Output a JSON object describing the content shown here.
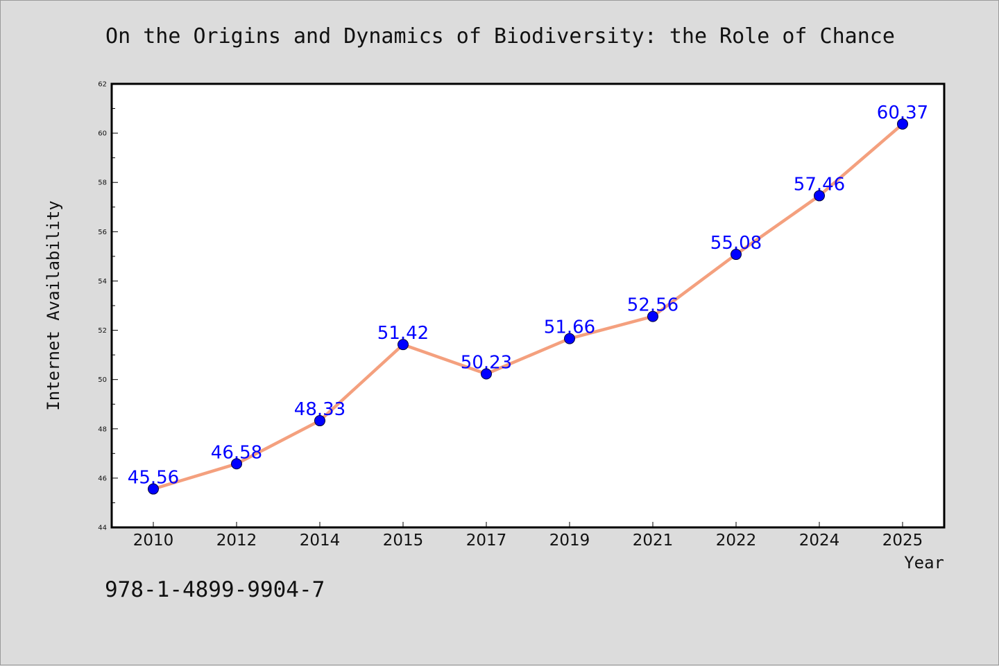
{
  "title": "On the Origins and Dynamics of Biodiversity: the Role of Chance",
  "isbn": "978-1-4899-9904-7",
  "colors": {
    "background": "#dcdcdc",
    "plot_background": "#ffffff",
    "line": "#f4a07e",
    "marker": "#0000ff",
    "data_label": "#0000ff"
  },
  "chart_data": {
    "type": "line",
    "title": "On the Origins and Dynamics of Biodiversity: the Role of Chance",
    "xlabel": "Year",
    "ylabel": "Internet Availability",
    "categories": [
      "2010",
      "2012",
      "2014",
      "2015",
      "2017",
      "2019",
      "2021",
      "2022",
      "2024",
      "2025"
    ],
    "series": [
      {
        "values": [
          45.56,
          46.58,
          48.33,
          51.42,
          50.23,
          51.66,
          52.56,
          55.08,
          57.46,
          60.37
        ],
        "labels": [
          "45.56",
          "46.58",
          "48.33",
          "51.42",
          "50.23",
          "51.66",
          "52.56",
          "55.08",
          "57.46",
          "60.37"
        ]
      }
    ],
    "ylim": [
      44,
      62
    ],
    "yticks": [
      44,
      46,
      48,
      50,
      52,
      54,
      56,
      58,
      60,
      62
    ],
    "grid": false,
    "legend": "none"
  }
}
